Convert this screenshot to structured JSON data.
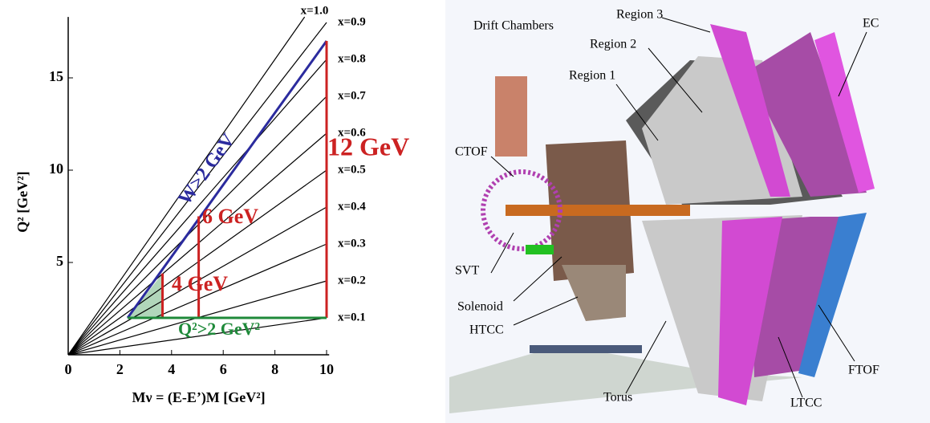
{
  "chart_data": {
    "type": "line",
    "x_label": "Mν = (E-E’)M [GeV²]",
    "y_label": "Q² [GeV²]",
    "xlim": [
      0,
      10.1
    ],
    "ylim": [
      0,
      18.3
    ],
    "xticks": [
      0,
      2,
      4,
      6,
      8,
      10
    ],
    "yticks": [
      5,
      10,
      15
    ],
    "series": [
      {
        "name": "x=0.1",
        "color": "#000000",
        "x": [
          0,
          10
        ],
        "values": [
          0,
          2
        ]
      },
      {
        "name": "x=0.2",
        "color": "#000000",
        "x": [
          0,
          10
        ],
        "values": [
          0,
          4
        ]
      },
      {
        "name": "x=0.3",
        "color": "#000000",
        "x": [
          0,
          10
        ],
        "values": [
          0,
          6
        ]
      },
      {
        "name": "x=0.4",
        "color": "#000000",
        "x": [
          0,
          10
        ],
        "values": [
          0,
          8
        ]
      },
      {
        "name": "x=0.5",
        "color": "#000000",
        "x": [
          0,
          10
        ],
        "values": [
          0,
          10
        ]
      },
      {
        "name": "x=0.6",
        "color": "#000000",
        "x": [
          0,
          10
        ],
        "values": [
          0,
          12
        ]
      },
      {
        "name": "x=0.7",
        "color": "#000000",
        "x": [
          0,
          10
        ],
        "values": [
          0,
          14
        ]
      },
      {
        "name": "x=0.8",
        "color": "#000000",
        "x": [
          0,
          10
        ],
        "values": [
          0,
          16
        ]
      },
      {
        "name": "x=0.9",
        "color": "#000000",
        "x": [
          0,
          10
        ],
        "values": [
          0,
          18
        ]
      },
      {
        "name": "x=1.0",
        "color": "#000000",
        "x": [
          0,
          9.15
        ],
        "values": [
          0,
          18.3
        ]
      },
      {
        "name": "W>2 GeV",
        "color": "#2b2b9e",
        "x": [
          2.3,
          10
        ],
        "values": [
          2,
          17
        ]
      },
      {
        "name": "12 GeV",
        "color": "#cc2222",
        "x": [
          10,
          10
        ],
        "values": [
          2,
          17
        ]
      },
      {
        "name": "6 GeV",
        "color": "#cc2222",
        "x": [
          5.05,
          5.05
        ],
        "values": [
          2,
          7.5
        ]
      },
      {
        "name": "4 GeV",
        "color": "#cc2222",
        "x": [
          3.65,
          3.65
        ],
        "values": [
          2,
          4.4
        ]
      },
      {
        "name": "Q²>2 GeV²",
        "color": "#1f8a3a",
        "x": [
          2.3,
          10
        ],
        "values": [
          2,
          2
        ]
      }
    ]
  },
  "diagram": {
    "labels": [
      "Drift Chambers",
      "Region 3",
      "Region 2",
      "Region 1",
      "EC",
      "CTOF",
      "SVT",
      "Solenoid",
      "HTCC",
      "Torus",
      "LTCC",
      "FTOF"
    ]
  }
}
